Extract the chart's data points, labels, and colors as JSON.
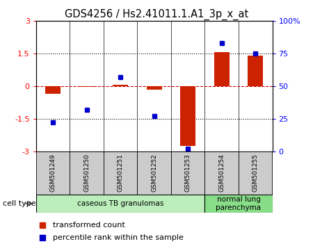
{
  "title": "GDS4256 / Hs2.41011.1.A1_3p_x_at",
  "samples": [
    "GSM501249",
    "GSM501250",
    "GSM501251",
    "GSM501252",
    "GSM501253",
    "GSM501254",
    "GSM501255"
  ],
  "transformed_count": [
    -0.35,
    -0.05,
    0.05,
    -0.15,
    -2.75,
    1.55,
    1.4
  ],
  "percentile_rank": [
    22,
    32,
    57,
    27,
    2,
    83,
    75
  ],
  "ylim_left": [
    -3,
    3
  ],
  "ylim_right": [
    0,
    100
  ],
  "yticks_left": [
    -3,
    -1.5,
    0,
    1.5,
    3
  ],
  "yticks_right": [
    0,
    25,
    50,
    75,
    100
  ],
  "ytick_labels_left": [
    "-3",
    "-1.5",
    "0",
    "1.5",
    "3"
  ],
  "ytick_labels_right": [
    "0",
    "25",
    "50",
    "75",
    "100%"
  ],
  "hlines_dotted": [
    -1.5,
    1.5
  ],
  "hline_dashed": 0,
  "bar_color": "#cc2200",
  "dot_color": "#0000cc",
  "cell_type_groups": [
    {
      "label": "caseous TB granulomas",
      "indices": [
        0,
        1,
        2,
        3,
        4
      ],
      "color": "#bbeebb"
    },
    {
      "label": "normal lung\nparenchyma",
      "indices": [
        5,
        6
      ],
      "color": "#88dd88"
    }
  ],
  "cell_type_label": "cell type",
  "legend_red": "transformed count",
  "legend_blue": "percentile rank within the sample",
  "bar_width": 0.45,
  "marker_size": 5
}
